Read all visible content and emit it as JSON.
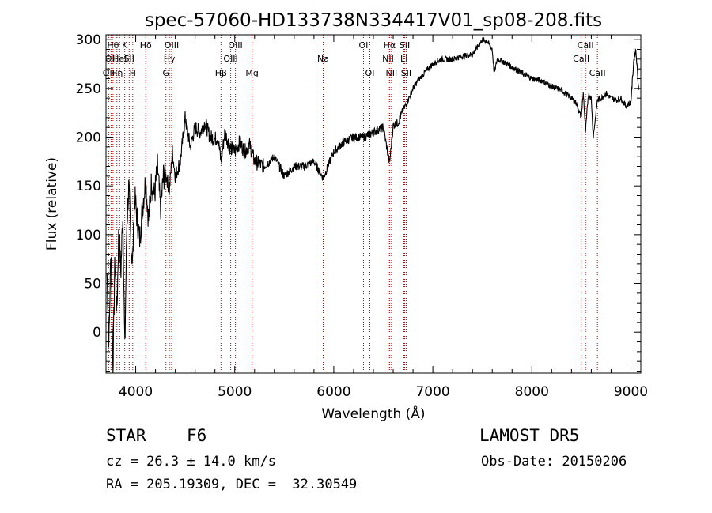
{
  "chart_data": {
    "type": "line",
    "title": "spec-57060-HD133738N334417V01_sp08-208.fits",
    "xlabel": "Wavelength (Å)",
    "ylabel": "Flux (relative)",
    "xlim": [
      3700,
      9100
    ],
    "ylim": [
      -42,
      305
    ],
    "xticks": [
      4000,
      5000,
      6000,
      7000,
      8000,
      9000
    ],
    "yticks": [
      0,
      50,
      100,
      150,
      200,
      250,
      300
    ],
    "grid": false,
    "line_color": "#000000",
    "marker_color": "#c00000",
    "series": [
      {
        "x": [
          3710,
          3730,
          3750,
          3770,
          3790,
          3810,
          3830,
          3850,
          3870,
          3890,
          3910,
          3930,
          3950,
          3968,
          3990,
          4010,
          4040,
          4070,
          4100,
          4130,
          4160,
          4190,
          4220,
          4250,
          4280,
          4310,
          4340,
          4370,
          4400,
          4450,
          4500,
          4550,
          4600,
          4650,
          4700,
          4750,
          4800,
          4830,
          4861,
          4900,
          4950,
          5000,
          5050,
          5100,
          5150,
          5200,
          5300,
          5400,
          5500,
          5600,
          5700,
          5800,
          5893,
          6000,
          6100,
          6200,
          6300,
          6400,
          6500,
          6563,
          6600,
          6650,
          6700,
          6750,
          6800,
          6850,
          6900,
          6950,
          7000,
          7050,
          7100,
          7200,
          7300,
          7400,
          7450,
          7500,
          7550,
          7600,
          7620,
          7650,
          7700,
          7800,
          7900,
          8000,
          8100,
          8200,
          8300,
          8400,
          8450,
          8498,
          8520,
          8542,
          8570,
          8600,
          8620,
          8662,
          8700,
          8750,
          8800,
          8850,
          8900,
          8950,
          9000,
          9030,
          9050,
          9080
        ],
        "y": [
          60,
          -10,
          90,
          -40,
          75,
          20,
          110,
          60,
          125,
          -20,
          110,
          150,
          95,
          70,
          140,
          120,
          95,
          130,
          155,
          115,
          155,
          140,
          170,
          125,
          160,
          160,
          145,
          185,
          160,
          175,
          220,
          190,
          210,
          205,
          215,
          200,
          198,
          200,
          175,
          205,
          190,
          185,
          195,
          185,
          192,
          175,
          170,
          180,
          160,
          170,
          170,
          175,
          158,
          185,
          195,
          200,
          200,
          205,
          210,
          173,
          212,
          215,
          228,
          238,
          250,
          258,
          264,
          270,
          275,
          278,
          280,
          280,
          283,
          285,
          292,
          300,
          298,
          290,
          265,
          280,
          278,
          272,
          266,
          260,
          258,
          252,
          248,
          240,
          235,
          220,
          246,
          205,
          244,
          240,
          200,
          238,
          240,
          245,
          240,
          238,
          240,
          232,
          236,
          280,
          290,
          248
        ]
      }
    ],
    "line_markers": [
      {
        "wl": 3727,
        "label": "OII",
        "row": 3
      },
      {
        "wl": 3751,
        "label": "OII",
        "row": 2
      },
      {
        "wl": 3771,
        "label": "Hθ",
        "row": 1
      },
      {
        "wl": 3810,
        "label": "Hη",
        "row": 3
      },
      {
        "wl": 3838,
        "label": "HeI",
        "row": 2
      },
      {
        "wl": 3889,
        "label": "K",
        "row": 1
      },
      {
        "wl": 3934,
        "label": "SII",
        "row": 2
      },
      {
        "wl": 3970,
        "label": "H",
        "row": 3
      },
      {
        "wl": 4101,
        "label": "Hδ",
        "row": 1
      },
      {
        "wl": 4305,
        "label": "G",
        "row": 3
      },
      {
        "wl": 4340,
        "label": "Hγ",
        "row": 2
      },
      {
        "wl": 4363,
        "label": "OIII",
        "row": 1
      },
      {
        "wl": 4861,
        "label": "Hβ",
        "row": 3
      },
      {
        "wl": 4959,
        "label": "OIII",
        "row": 2
      },
      {
        "wl": 5007,
        "label": "OIII",
        "row": 1
      },
      {
        "wl": 5175,
        "label": "Mg",
        "row": 3
      },
      {
        "wl": 5893,
        "label": "Na",
        "row": 2
      },
      {
        "wl": 6300,
        "label": "OI",
        "row": 1
      },
      {
        "wl": 6364,
        "label": "OI",
        "row": 3
      },
      {
        "wl": 6548,
        "label": "NII",
        "row": 2
      },
      {
        "wl": 6563,
        "label": "Hα",
        "row": 1
      },
      {
        "wl": 6583,
        "label": "NII",
        "row": 3
      },
      {
        "wl": 6708,
        "label": "Li",
        "row": 2
      },
      {
        "wl": 6716,
        "label": "SII",
        "row": 1
      },
      {
        "wl": 6731,
        "label": "SII",
        "row": 3
      },
      {
        "wl": 8498,
        "label": "CaII",
        "row": 2
      },
      {
        "wl": 8542,
        "label": "CaII",
        "row": 1
      },
      {
        "wl": 8662,
        "label": "CaII",
        "row": 3
      }
    ]
  },
  "info": {
    "class_label": "STAR",
    "subclass": "F6",
    "survey": "LAMOST DR5",
    "cz": "cz = 26.3 ± 14.0 km/s",
    "obs_date": "Obs-Date: 20150206",
    "coords": "RA = 205.19309, DEC =  32.30549"
  }
}
